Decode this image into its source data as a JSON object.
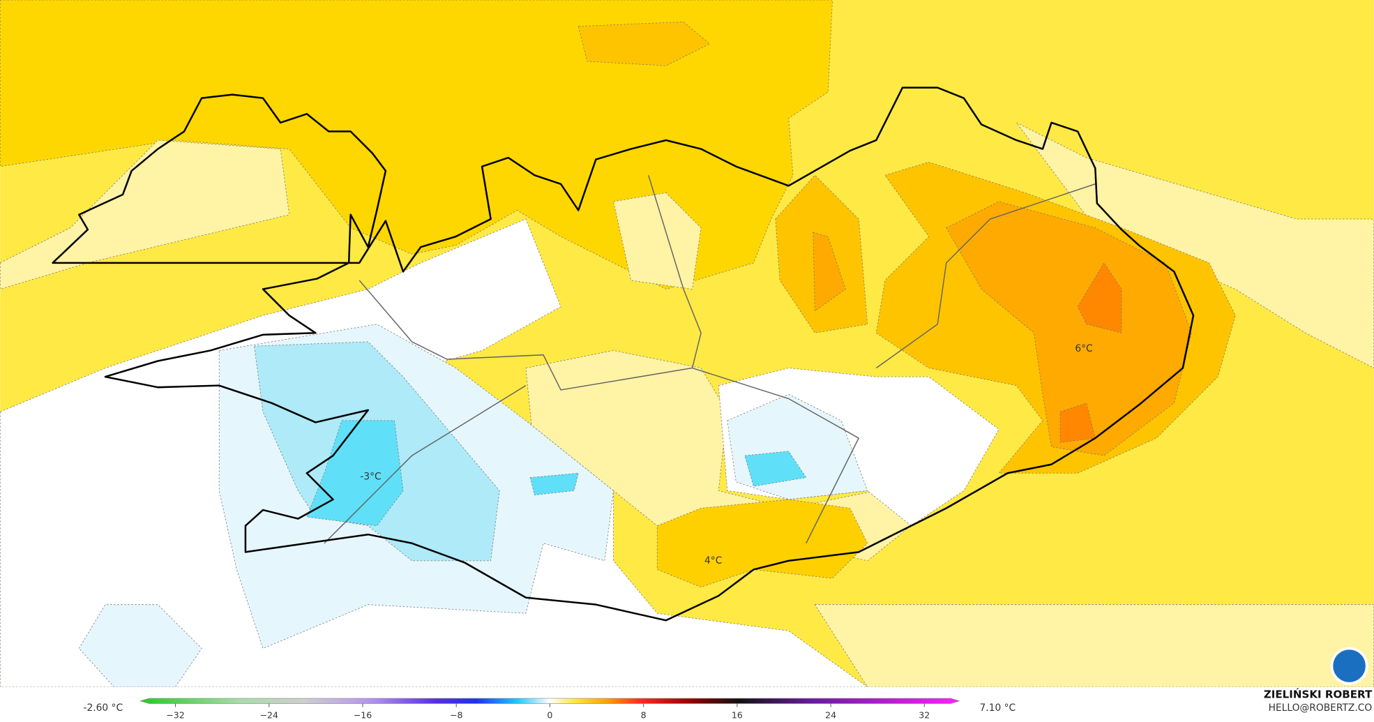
{
  "map": {
    "labels": [
      {
        "text": "6°C"
      },
      {
        "text": "-3°C"
      },
      {
        "text": "4°C"
      }
    ],
    "colorbar": {
      "min_label": "-2.60 °C",
      "max_label": "7.10 °C",
      "range": [
        -35,
        35
      ],
      "ticks": [
        {
          "value": -32,
          "label": "−32"
        },
        {
          "value": -24,
          "label": "−24"
        },
        {
          "value": -16,
          "label": "−16"
        },
        {
          "value": -8,
          "label": "−8"
        },
        0,
        8,
        16,
        24,
        32
      ]
    },
    "credit": {
      "name": "ZIELIŃSKI ROBERT",
      "contact": "HELLO@ROBERTZ.CO"
    }
  }
}
